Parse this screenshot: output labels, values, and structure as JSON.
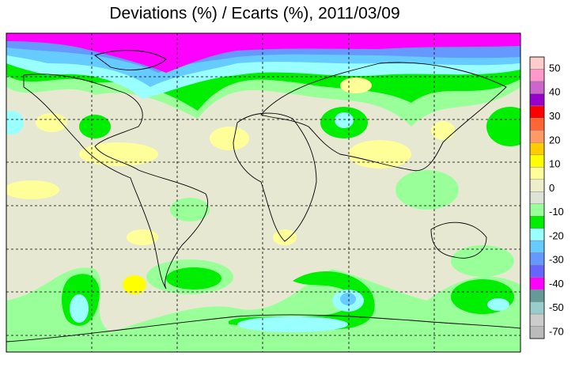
{
  "title": "Deviations (%) / Ecarts (%), 2011/03/09",
  "legend": {
    "ticks": [
      50,
      40,
      30,
      20,
      10,
      0,
      -10,
      -20,
      -30,
      -40,
      -50,
      -70
    ],
    "colors": [
      "#ffcccc",
      "#ff99cc",
      "#cc66cc",
      "#9900cc",
      "#ff0000",
      "#ff6633",
      "#ff9966",
      "#ffcc00",
      "#ffff00",
      "#ffff99",
      "#eeeecc",
      "#dde3d5",
      "#99ff99",
      "#00ee00",
      "#99ffff",
      "#66ccff",
      "#6699ff",
      "#6666ff",
      "#ff00ff",
      "#669999",
      "#99cccc",
      "#cccccc",
      "#bbbbbb"
    ]
  }
}
